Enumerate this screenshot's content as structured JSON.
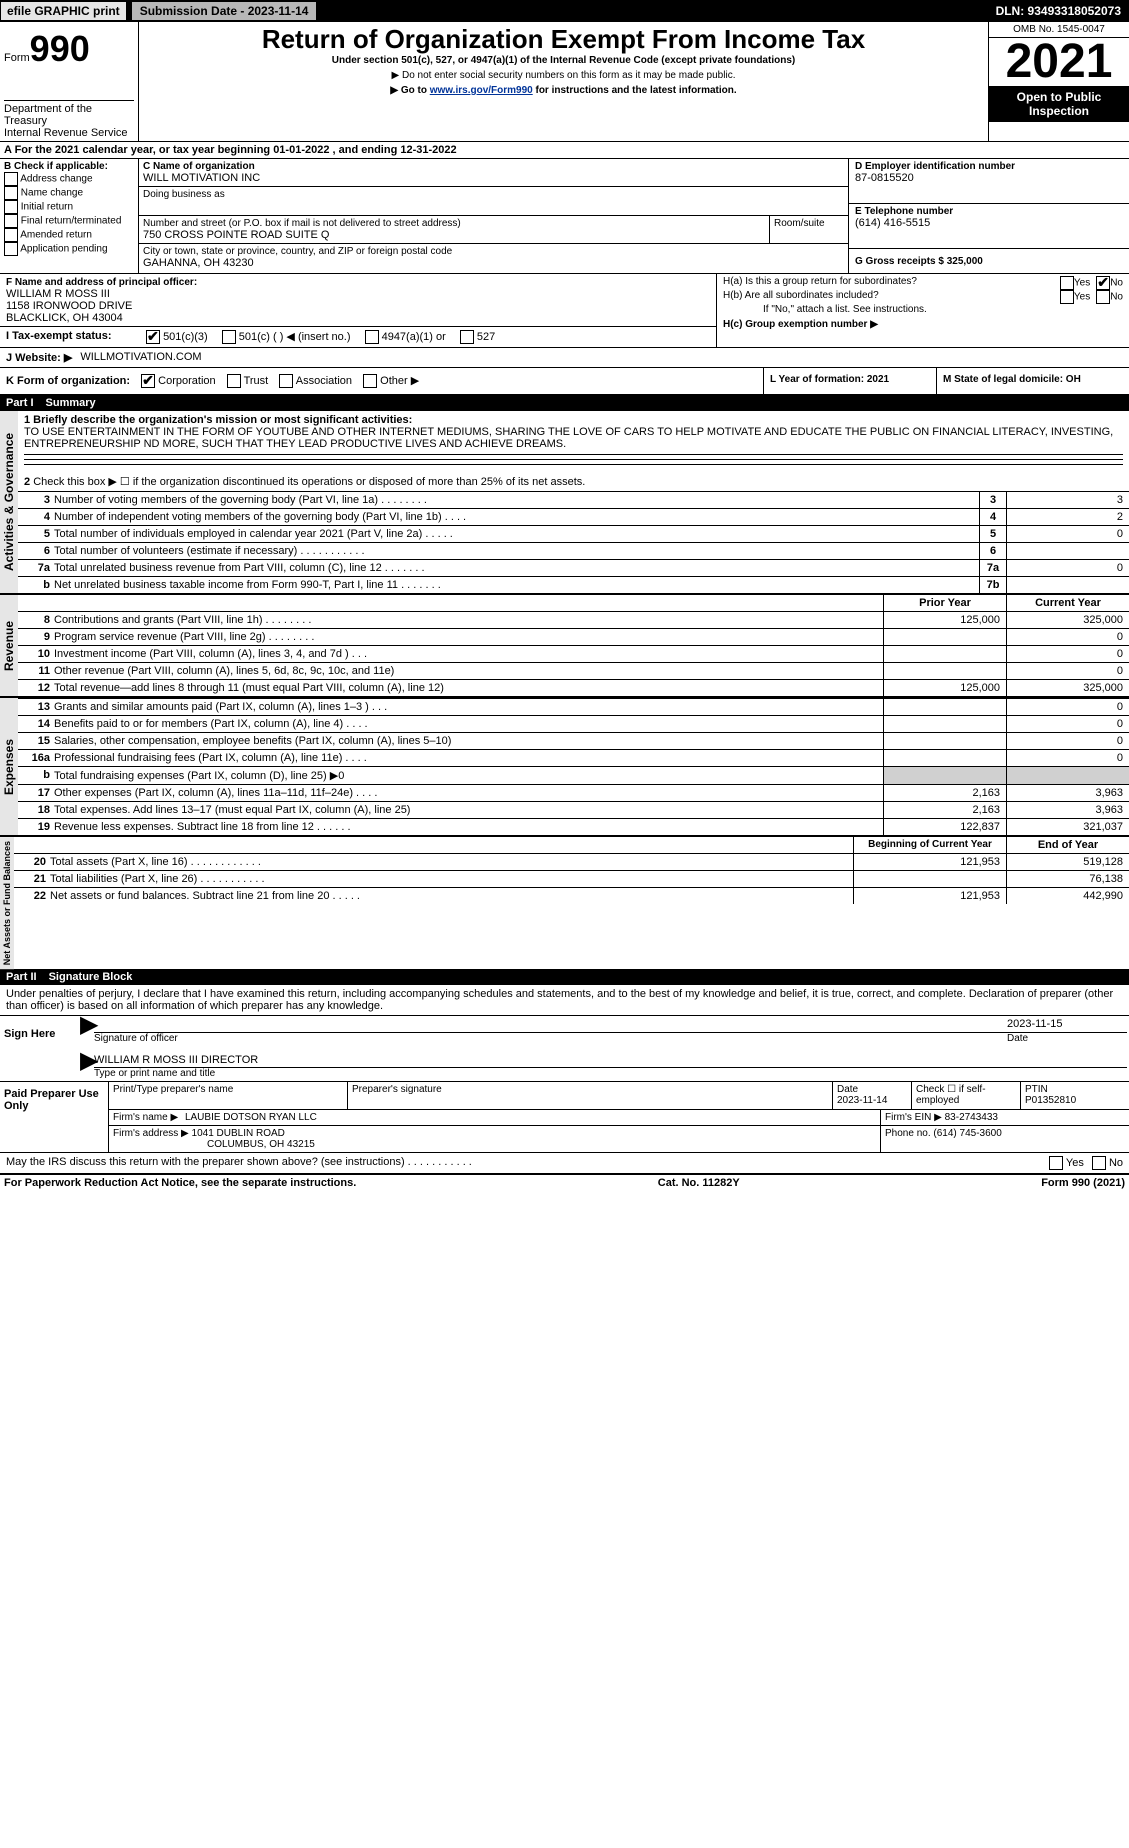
{
  "topbar": {
    "efile_label": "efile GRAPHIC print",
    "submission_label": "Submission Date - 2023-11-14",
    "dln_label": "DLN: 93493318052073"
  },
  "header": {
    "form_label": "Form",
    "form_number": "990",
    "title": "Return of Organization Exempt From Income Tax",
    "subtitle": "Under section 501(c), 527, or 4947(a)(1) of the Internal Revenue Code (except private foundations)",
    "warning": "▶ Do not enter social security numbers on this form as it may be made public.",
    "link_pre": "▶ Go to ",
    "link": "www.irs.gov/Form990",
    "link_post": " for instructions and the latest information.",
    "dept": "Department of the Treasury",
    "irs": "Internal Revenue Service",
    "omb": "OMB No. 1545-0047",
    "year": "2021",
    "open_public": "Open to Public Inspection"
  },
  "section_a": {
    "line_a": "A For the 2021 calendar year, or tax year beginning 01-01-2022    , and ending 12-31-2022",
    "b_label": "B Check if applicable:",
    "b_items": [
      "Address change",
      "Name change",
      "Initial return",
      "Final return/terminated",
      "Amended return",
      "Application pending"
    ],
    "c_label": "C Name of organization",
    "org_name": "WILL MOTIVATION INC",
    "dba_label": "Doing business as",
    "street_label": "Number and street (or P.O. box if mail is not delivered to street address)",
    "room_label": "Room/suite",
    "street": "750 CROSS POINTE ROAD SUITE Q",
    "city_label": "City or town, state or province, country, and ZIP or foreign postal code",
    "city": "GAHANNA, OH  43230",
    "d_label": "D Employer identification number",
    "ein": "87-0815520",
    "e_label": "E Telephone number",
    "phone": "(614) 416-5515",
    "g_label": "G Gross receipts $ 325,000",
    "f_label": "F  Name and address of principal officer:",
    "officer_name": "WILLIAM R MOSS III",
    "officer_addr1": "1158 IRONWOOD DRIVE",
    "officer_addr2": "BLACKLICK, OH  43004",
    "ha_label": "H(a)  Is this a group return for subordinates?",
    "hb_label": "H(b)  Are all subordinates included?",
    "hb_note": "If \"No,\" attach a list. See instructions.",
    "hc_label": "H(c)  Group exemption number ▶",
    "yes": "Yes",
    "no": "No",
    "i_label": "I  Tax-exempt status:",
    "i_opts": {
      "a": "501(c)(3)",
      "b": "501(c) (  ) ◀ (insert no.)",
      "c": "4947(a)(1) or",
      "d": "527"
    },
    "j_label": "J  Website: ▶",
    "website": "WILLMOTIVATION.COM",
    "k_label": "K Form of organization:",
    "k_opts": [
      "Corporation",
      "Trust",
      "Association",
      "Other ▶"
    ],
    "l_label": "L Year of formation: 2021",
    "m_label": "M State of legal domicile: OH"
  },
  "part1": {
    "header_num": "Part I",
    "header_title": "Summary",
    "line1_label": "1 Briefly describe the organization's mission or most significant activities:",
    "mission": "TO USE ENTERTAINMENT IN THE FORM OF YOUTUBE AND OTHER INTERNET MEDIUMS, SHARING THE LOVE OF CARS TO HELP MOTIVATE AND EDUCATE THE PUBLIC ON FINANCIAL LITERACY, INVESTING, ENTREPRENEURSHIP ND MORE, SUCH THAT THEY LEAD PRODUCTIVE LIVES AND ACHIEVE DREAMS.",
    "line2": "Check this box ▶ ☐ if the organization discontinued its operations or disposed of more than 25% of its net assets.",
    "group_a_label": "Activities & Governance",
    "group_b_label": "Revenue",
    "group_c_label": "Expenses",
    "group_d_label": "Net Assets or Fund Balances",
    "rows_gov": [
      {
        "n": "3",
        "desc": "Number of voting members of the governing body (Part VI, line 1a)  .    .    .    .    .    .    .    .",
        "box": "3",
        "val": "3"
      },
      {
        "n": "4",
        "desc": "Number of independent voting members of the governing body (Part VI, line 1b)  .    .    .    .",
        "box": "4",
        "val": "2"
      },
      {
        "n": "5",
        "desc": "Total number of individuals employed in calendar year 2021 (Part V, line 2a)  .    .    .    .    .",
        "box": "5",
        "val": "0"
      },
      {
        "n": "6",
        "desc": "Total number of volunteers (estimate if necessary)   .    .    .    .    .    .    .    .    .    .    .",
        "box": "6",
        "val": ""
      },
      {
        "n": "7a",
        "desc": "Total unrelated business revenue from Part VIII, column (C), line 12   .    .    .    .    .    .    .",
        "box": "7a",
        "val": "0"
      },
      {
        "n": "b",
        "desc": "Net unrelated business taxable income from Form 990-T, Part I, line 11  .    .    .    .    .    .    .",
        "box": "7b",
        "val": ""
      }
    ],
    "py_label": "Prior Year",
    "cy_label": "Current Year",
    "rows_rev": [
      {
        "n": "8",
        "desc": "Contributions and grants (Part VIII, line 1h)  .    .    .    .    .    .    .    .",
        "py": "125,000",
        "cy": "325,000"
      },
      {
        "n": "9",
        "desc": "Program service revenue (Part VIII, line 2g)   .    .    .    .    .    .    .    .",
        "py": "",
        "cy": "0"
      },
      {
        "n": "10",
        "desc": "Investment income (Part VIII, column (A), lines 3, 4, and 7d )    .    .    .",
        "py": "",
        "cy": "0"
      },
      {
        "n": "11",
        "desc": "Other revenue (Part VIII, column (A), lines 5, 6d, 8c, 9c, 10c, and 11e)",
        "py": "",
        "cy": "0"
      },
      {
        "n": "12",
        "desc": "Total revenue—add lines 8 through 11 (must equal Part VIII, column (A), line 12)",
        "py": "125,000",
        "cy": "325,000"
      }
    ],
    "rows_exp": [
      {
        "n": "13",
        "desc": "Grants and similar amounts paid (Part IX, column (A), lines 1–3 )  .    .    .",
        "py": "",
        "cy": "0"
      },
      {
        "n": "14",
        "desc": "Benefits paid to or for members (Part IX, column (A), line 4)  .    .    .    .",
        "py": "",
        "cy": "0"
      },
      {
        "n": "15",
        "desc": "Salaries, other compensation, employee benefits (Part IX, column (A), lines 5–10)",
        "py": "",
        "cy": "0"
      },
      {
        "n": "16a",
        "desc": "Professional fundraising fees (Part IX, column (A), line 11e)   .    .    .    .",
        "py": "",
        "cy": "0"
      },
      {
        "n": "b",
        "desc": "Total fundraising expenses (Part IX, column (D), line 25) ▶0",
        "py": "GREY",
        "cy": "GREY"
      },
      {
        "n": "17",
        "desc": "Other expenses (Part IX, column (A), lines 11a–11d, 11f–24e)   .    .    .    .",
        "py": "2,163",
        "cy": "3,963"
      },
      {
        "n": "18",
        "desc": "Total expenses. Add lines 13–17 (must equal Part IX, column (A), line 25)",
        "py": "2,163",
        "cy": "3,963"
      },
      {
        "n": "19",
        "desc": "Revenue less expenses. Subtract line 18 from line 12  .    .    .    .    .    .",
        "py": "122,837",
        "cy": "321,037"
      }
    ],
    "by_label": "Beginning of Current Year",
    "ey_label": "End of Year",
    "rows_net": [
      {
        "n": "20",
        "desc": "Total assets (Part X, line 16)  .    .    .    .    .    .    .    .    .    .    .    .",
        "py": "121,953",
        "cy": "519,128"
      },
      {
        "n": "21",
        "desc": "Total liabilities (Part X, line 26)   .    .    .    .    .    .    .    .    .    .    .",
        "py": "",
        "cy": "76,138"
      },
      {
        "n": "22",
        "desc": "Net assets or fund balances. Subtract line 21 from line 20   .    .    .    .    .",
        "py": "121,953",
        "cy": "442,990"
      }
    ]
  },
  "part2": {
    "header_num": "Part II",
    "header_title": "Signature Block",
    "penalties": "Under penalties of perjury, I declare that I have examined this return, including accompanying schedules and statements, and to the best of my knowledge and belief, it is true, correct, and complete. Declaration of preparer (other than officer) is based on all information of which preparer has any knowledge.",
    "sign_here": "Sign Here",
    "sig_officer_label": "Signature of officer",
    "sig_date": "2023-11-15",
    "date_label": "Date",
    "officer_printed": "WILLIAM R MOSS III  DIRECTOR",
    "type_label": "Type or print name and title",
    "paid_label": "Paid Preparer Use Only",
    "prep_name_label": "Print/Type preparer's name",
    "prep_sig_label": "Preparer's signature",
    "prep_date": "2023-11-14",
    "check_if_label": "Check ☐ if self-employed",
    "ptin_label": "PTIN",
    "ptin": "P01352810",
    "firm_name_label": "Firm's name    ▶",
    "firm_name": "LAUBIE DOTSON RYAN LLC",
    "firm_ein_label": "Firm's EIN ▶",
    "firm_ein": "83-2743433",
    "firm_addr_label": "Firm's address ▶",
    "firm_addr1": "1041 DUBLIN ROAD",
    "firm_addr2": "COLUMBUS, OH  43215",
    "firm_phone_label": "Phone no.",
    "firm_phone": "(614) 745-3600",
    "may_irs": "May the IRS discuss this return with the preparer shown above? (see instructions)   .    .    .    .    .    .    .    .    .    .    ."
  },
  "footer": {
    "left": "For Paperwork Reduction Act Notice, see the separate instructions.",
    "mid": "Cat. No. 11282Y",
    "right": "Form 990 (2021)"
  },
  "colors": {
    "black": "#000000",
    "grey": "#d0d0d0",
    "link": "#003399"
  }
}
